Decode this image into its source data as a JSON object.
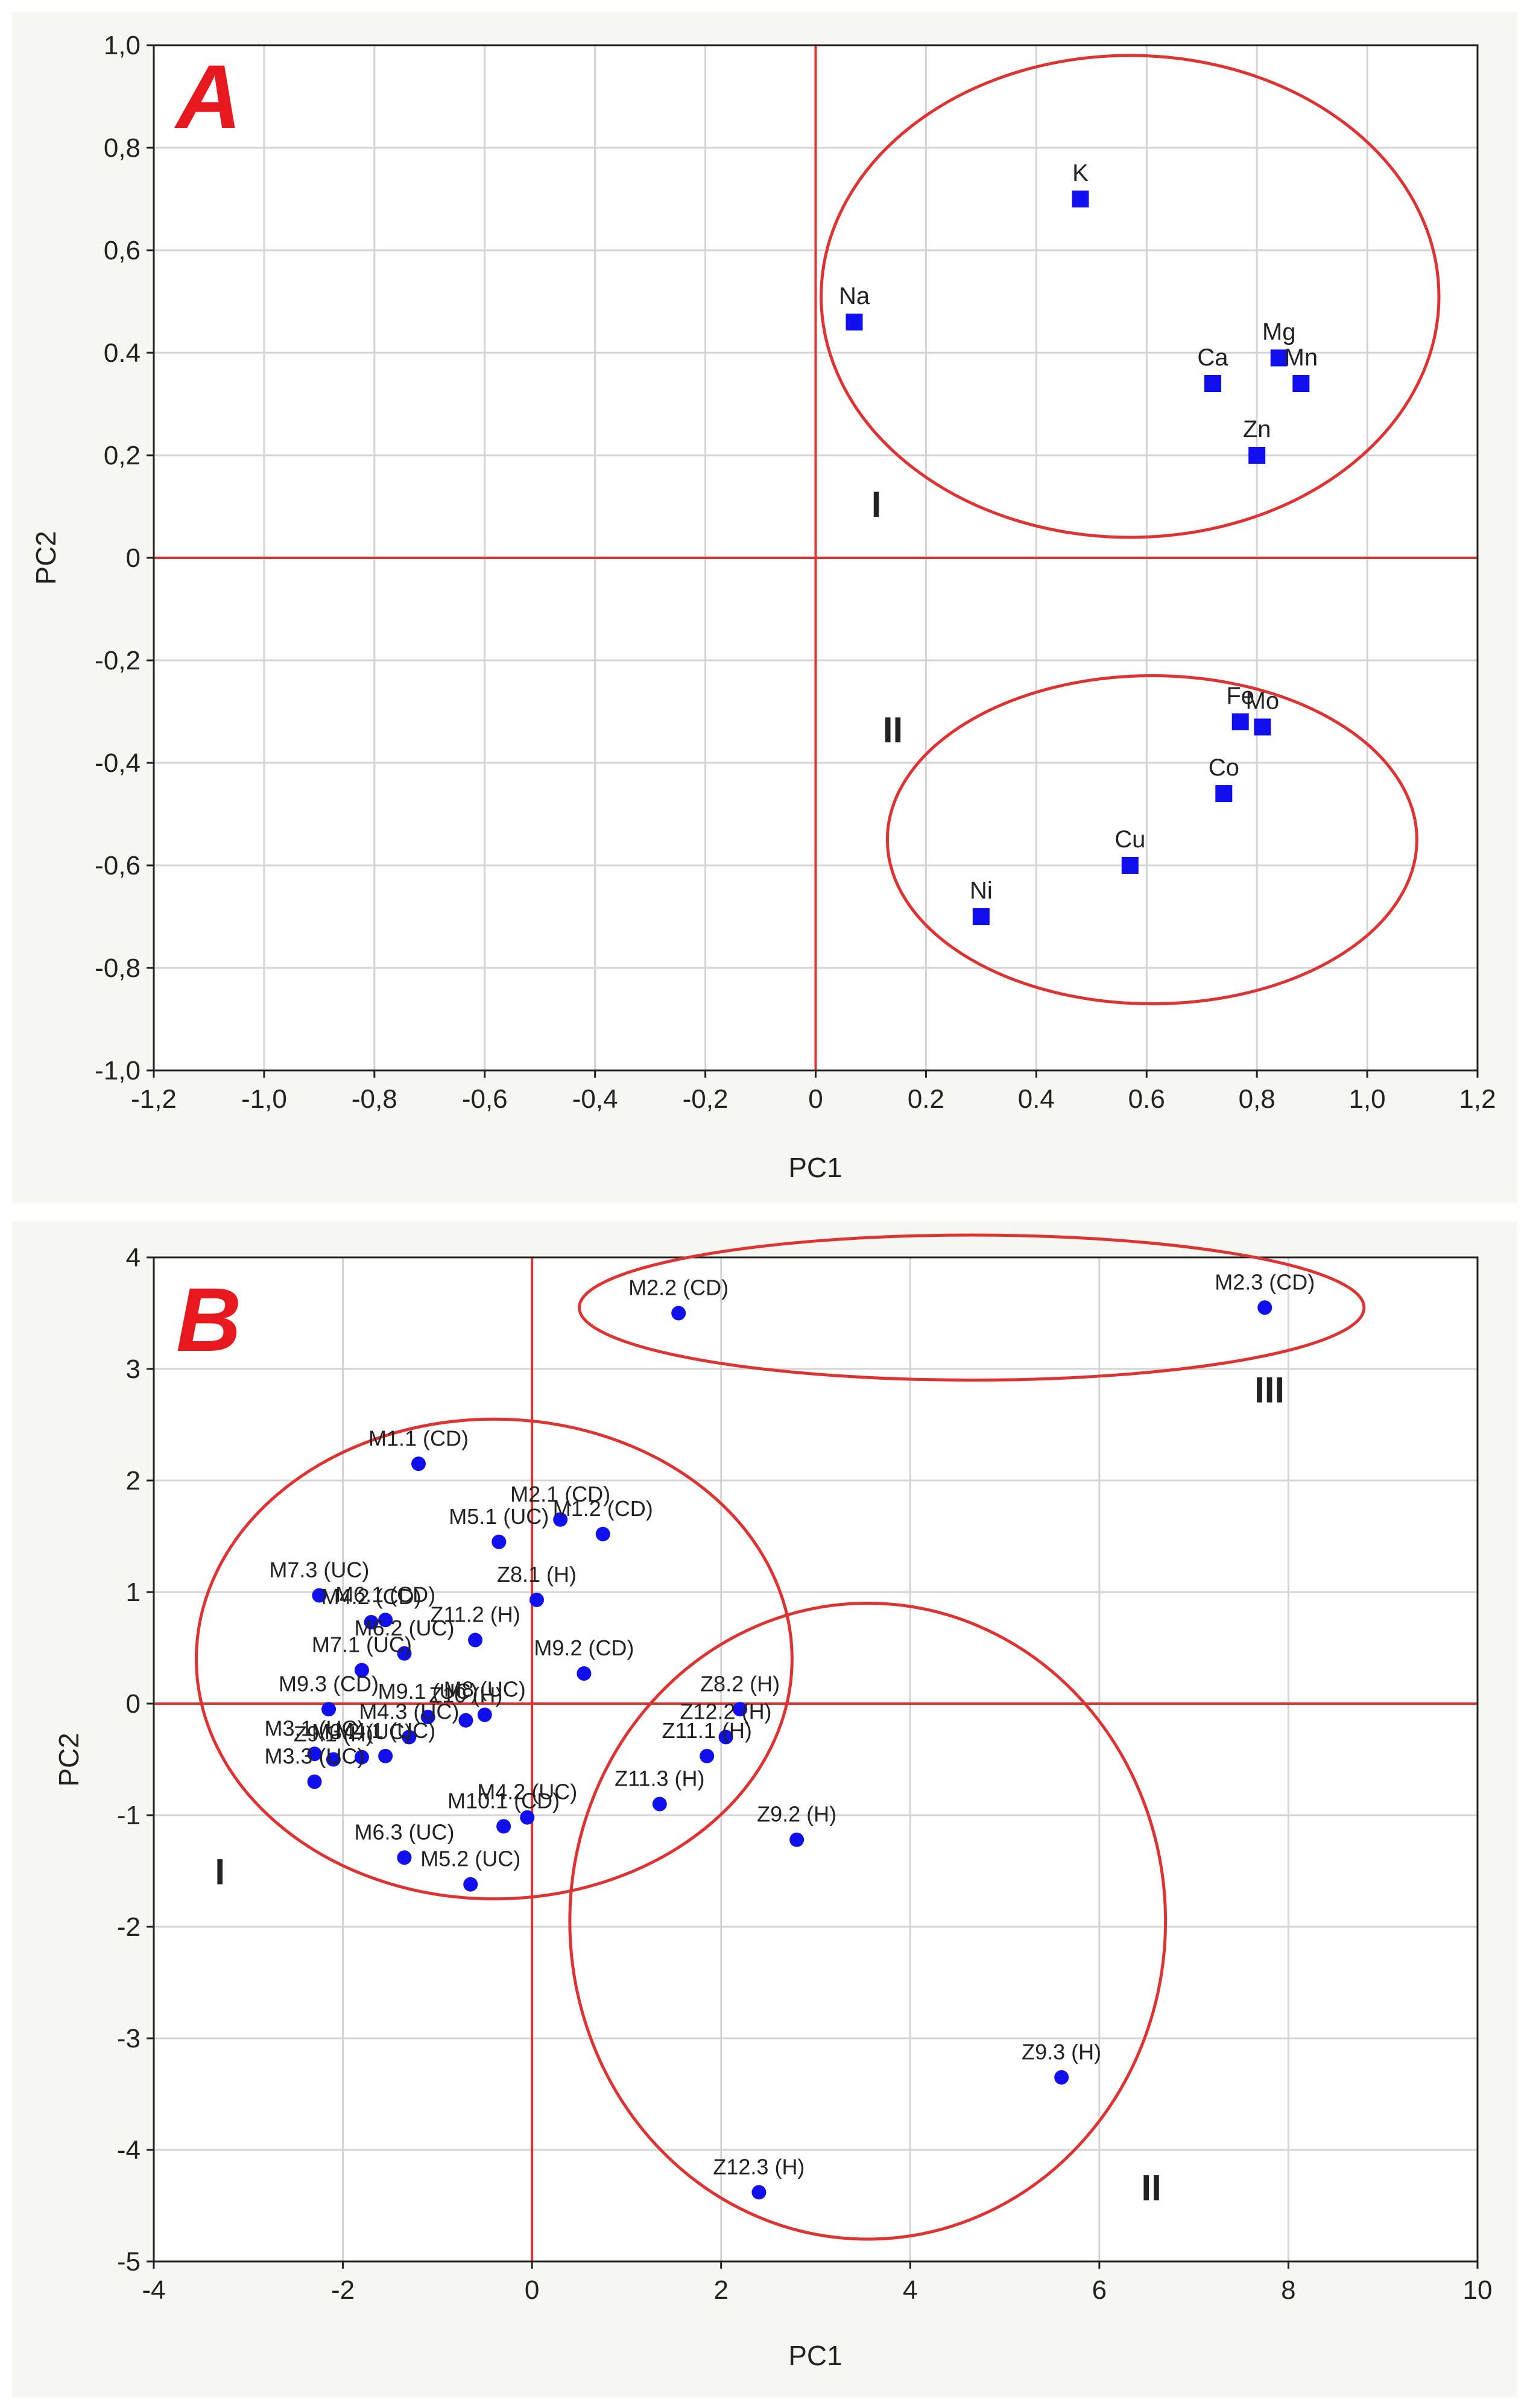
{
  "chart_data": [
    {
      "panel": "A",
      "type": "scatter",
      "xlabel": "PC1",
      "ylabel": "PC2",
      "xlim": [
        -1.2,
        1.2
      ],
      "ylim": [
        -1.0,
        1.0
      ],
      "grid": true,
      "xticks": [
        -1.2,
        -1.0,
        -0.8,
        -0.6,
        -0.4,
        -0.2,
        0,
        0.2,
        0.4,
        0.6,
        0.8,
        1.0,
        1.2
      ],
      "xtick_labels": [
        "-1,2",
        "-1,0",
        "-0,8",
        "-0,6",
        "-0,4",
        "-0,2",
        "0",
        "0.2",
        "0.4",
        "0.6",
        "0,8",
        "1,0",
        "1,2"
      ],
      "yticks": [
        -1.0,
        -0.8,
        -0.6,
        -0.4,
        -0.2,
        0,
        0.2,
        0.4,
        0.6,
        0.8,
        1.0
      ],
      "ytick_labels": [
        "-1,0",
        "-0,8",
        "-0,6",
        "-0,4",
        "-0,2",
        "0",
        "0,2",
        "0.4",
        "0,6",
        "0,8",
        "1,0"
      ],
      "marker": "square",
      "points": [
        {
          "label": "K",
          "x": 0.48,
          "y": 0.7
        },
        {
          "label": "Na",
          "x": 0.07,
          "y": 0.46
        },
        {
          "label": "Mg",
          "x": 0.84,
          "y": 0.39
        },
        {
          "label": "Ca",
          "x": 0.72,
          "y": 0.34
        },
        {
          "label": "Mn",
          "x": 0.88,
          "y": 0.34
        },
        {
          "label": "Zn",
          "x": 0.8,
          "y": 0.2
        },
        {
          "label": "Fe",
          "x": 0.77,
          "y": -0.32
        },
        {
          "label": "Mo",
          "x": 0.81,
          "y": -0.33
        },
        {
          "label": "Co",
          "x": 0.74,
          "y": -0.46
        },
        {
          "label": "Cu",
          "x": 0.57,
          "y": -0.6
        },
        {
          "label": "Ni",
          "x": 0.3,
          "y": -0.7
        }
      ],
      "groups": [
        {
          "label": "I",
          "cx": 0.57,
          "cy": 0.51,
          "rx": 0.56,
          "ry": 0.47,
          "label_x": 0.11,
          "label_y": 0.08
        },
        {
          "label": "II",
          "cx": 0.61,
          "cy": -0.55,
          "rx": 0.48,
          "ry": 0.32,
          "label_x": 0.14,
          "label_y": -0.36
        }
      ]
    },
    {
      "panel": "B",
      "type": "scatter",
      "xlabel": "PC1",
      "ylabel": "PC2",
      "xlim": [
        -4,
        10
      ],
      "ylim": [
        -5,
        4
      ],
      "grid": true,
      "xticks": [
        -4,
        -2,
        0,
        2,
        4,
        6,
        8,
        10
      ],
      "xtick_labels": [
        "-4",
        "-2",
        "0",
        "2",
        "4",
        "6",
        "8",
        "10"
      ],
      "yticks": [
        -5,
        -4,
        -3,
        -2,
        -1,
        0,
        1,
        2,
        3,
        4
      ],
      "ytick_labels": [
        "-5",
        "-4",
        "-3",
        "-2",
        "-1",
        "0",
        "1",
        "2",
        "3",
        "4"
      ],
      "marker": "circle",
      "points": [
        {
          "label": "M2.2 (CD)",
          "x": 1.55,
          "y": 3.5
        },
        {
          "label": "M2.3 (CD)",
          "x": 7.75,
          "y": 3.55
        },
        {
          "label": "M1.1 (CD)",
          "x": -1.2,
          "y": 2.15
        },
        {
          "label": "M2.1 (CD)",
          "x": 0.3,
          "y": 1.65
        },
        {
          "label": "M1.2 (CD)",
          "x": 0.75,
          "y": 1.52
        },
        {
          "label": "M5.1 (UC)",
          "x": -0.35,
          "y": 1.45
        },
        {
          "label": "Z8.1 (H)",
          "x": 0.05,
          "y": 0.93
        },
        {
          "label": "M7.3 (UC)",
          "x": -2.25,
          "y": 0.97
        },
        {
          "label": "M6.1 (CD)",
          "x": -1.55,
          "y": 0.75
        },
        {
          "label": "M4.2 (CD)",
          "x": -1.7,
          "y": 0.73
        },
        {
          "label": "Z11.2 (H)",
          "x": -0.6,
          "y": 0.57
        },
        {
          "label": "M6.2 (UC)",
          "x": -1.35,
          "y": 0.45
        },
        {
          "label": "M7.1 (UC)",
          "x": -1.8,
          "y": 0.3
        },
        {
          "label": "M9.2 (CD)",
          "x": 0.55,
          "y": 0.27
        },
        {
          "label": "M9.3 (CD)",
          "x": -2.15,
          "y": -0.05
        },
        {
          "label": "M9.1 (UC)",
          "x": -1.1,
          "y": -0.12
        },
        {
          "label": "M8 (UC)",
          "x": -0.5,
          "y": -0.1
        },
        {
          "label": "Z10 (H)",
          "x": -0.7,
          "y": -0.15
        },
        {
          "label": "M4.3 (UC)",
          "x": -1.3,
          "y": -0.3
        },
        {
          "label": "M3.1 (UC)",
          "x": -2.3,
          "y": -0.45
        },
        {
          "label": "M3.2 (UC)",
          "x": -1.8,
          "y": -0.48
        },
        {
          "label": "M4.1 (UC)",
          "x": -1.55,
          "y": -0.47
        },
        {
          "label": "Z9.1 (H)",
          "x": -2.1,
          "y": -0.5
        },
        {
          "label": "M3.3 (UC)",
          "x": -2.3,
          "y": -0.7
        },
        {
          "label": "Z8.2 (H)",
          "x": 2.2,
          "y": -0.05
        },
        {
          "label": "Z12.2 (H)",
          "x": 2.05,
          "y": -0.3
        },
        {
          "label": "Z11.1 (H)",
          "x": 1.85,
          "y": -0.47
        },
        {
          "label": "Z11.3 (H)",
          "x": 1.35,
          "y": -0.9
        },
        {
          "label": "M4.2 (UC)",
          "x": -0.05,
          "y": -1.02
        },
        {
          "label": "M10.1 (CD)",
          "x": -0.3,
          "y": -1.1
        },
        {
          "label": "Z9.2 (H)",
          "x": 2.8,
          "y": -1.22
        },
        {
          "label": "M6.3 (UC)",
          "x": -1.35,
          "y": -1.38
        },
        {
          "label": "M5.2 (UC)",
          "x": -0.65,
          "y": -1.62
        },
        {
          "label": "Z9.3 (H)",
          "x": 5.6,
          "y": -3.35
        },
        {
          "label": "Z12.3 (H)",
          "x": 2.4,
          "y": -4.38
        }
      ],
      "groups": [
        {
          "label": "I",
          "cx": -0.4,
          "cy": 0.4,
          "rx": 3.15,
          "ry": 2.15,
          "label_x": -3.3,
          "label_y": -1.62
        },
        {
          "label": "II",
          "cx": 3.55,
          "cy": -1.95,
          "rx": 3.15,
          "ry": 2.85,
          "label_x": 6.55,
          "label_y": -4.45
        },
        {
          "label": "III",
          "cx": 4.65,
          "cy": 3.55,
          "rx": 4.15,
          "ry": 0.65,
          "label_x": 7.8,
          "label_y": 2.7
        }
      ]
    }
  ],
  "panels": {
    "a": {
      "letter": "A"
    },
    "b": {
      "letter": "B"
    }
  },
  "colors": {
    "point": "#1010ee",
    "circle": "#dd3333",
    "zero_line": "#dd3333",
    "panel_letter": "#e8191e",
    "grid": "#d4d4d4",
    "panel_bg": "#f7f7f1"
  }
}
